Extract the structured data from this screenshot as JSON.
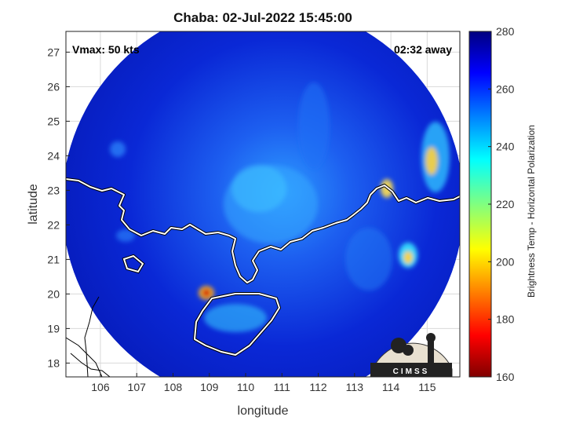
{
  "figure": {
    "title": "Chaba: 02-Jul-2022 15:45:00",
    "vmax_label": "Vmax: 50 kts",
    "time_label": "02:32 away",
    "xlabel": "longitude",
    "ylabel": "latitude",
    "colorbar_label": "Brightness Temp - Horizontal Polarization",
    "logo_text": "CIMSS"
  },
  "axes": {
    "x_ticks": [
      "106",
      "107",
      "108",
      "109",
      "110",
      "111",
      "112",
      "113",
      "114",
      "115"
    ],
    "y_ticks": [
      "18",
      "19",
      "20",
      "21",
      "22",
      "23",
      "24",
      "25",
      "26",
      "27"
    ],
    "x_range": [
      105.05,
      115.9
    ],
    "y_range": [
      17.6,
      27.6
    ],
    "grid": true
  },
  "colorbar": {
    "ticks": [
      "160",
      "180",
      "200",
      "220",
      "240",
      "260",
      "280"
    ],
    "range": [
      160,
      280
    ],
    "colormap": "jet"
  },
  "colors": {
    "background_field": "#0a1fd0",
    "coastline": "#ffffff",
    "border": "#000000"
  }
}
